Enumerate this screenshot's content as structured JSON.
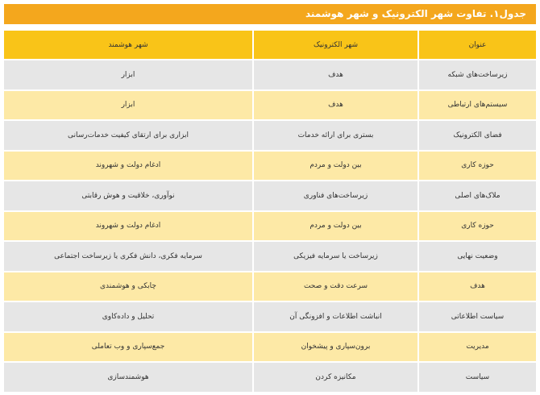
{
  "title": "جدول۱. تفاوت شهر الکترونیک و شهر هوشمند",
  "table": {
    "header": [
      "عنوان",
      "شهر الکترونیک",
      "شهر هوشمند"
    ],
    "rows": [
      [
        "زیرساخت‌های شبکه",
        "هدف",
        "ابزار"
      ],
      [
        "سیستم‌های ارتباطی",
        "هدف",
        "ابزار"
      ],
      [
        "فضای الکترونیک",
        "بستری برای ارائه خدمات",
        "ابزاری برای ارتقای کیفیت خدمات‌رسانی"
      ],
      [
        "حوزه کاری",
        "بین دولت و مردم",
        "ادغام دولت و شهروند"
      ],
      [
        "ملاک‌های اصلی",
        "زیرساخت‌های فناوری",
        "نوآوری، خلاقیت و هوش رقابتی"
      ],
      [
        "حوزه کاری",
        "بین دولت و مردم",
        "ادغام دولت و شهروند"
      ],
      [
        "وضعیت نهایی",
        "زیرساخت یا سرمایه فیزیکی",
        "سرمایه فکری، دانش فکری یا زیرساخت اجتماعی"
      ],
      [
        "هدف",
        "سرعت دقت و صحت",
        "چابکی و هوشمندی"
      ],
      [
        "سیاست اطلاعاتی",
        "انباشت اطلاعات و افزونگی آن",
        "تحلیل و داده‌کاوی"
      ],
      [
        "مدیریت",
        "برون‌سپاری و پیشخوان",
        "جمع‌سپاری و وب تعاملی"
      ],
      [
        "سیاست",
        "مکانیزه کردن",
        "هوشمندسازی"
      ]
    ]
  }
}
